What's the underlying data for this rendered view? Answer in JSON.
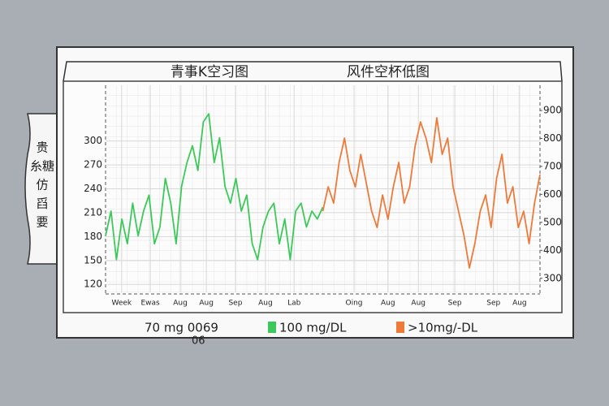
{
  "chart_data": {
    "type": "line",
    "titles": [
      "青事K空习图",
      "风件空杯低图"
    ],
    "side_label": [
      "贵",
      "糸糖",
      "仿",
      "舀",
      "要"
    ],
    "legend_note": [
      "70 mg 0069",
      "06"
    ],
    "xlim": [
      0,
      100
    ],
    "xticks": [
      {
        "value": 3.7,
        "label": "Week"
      },
      {
        "value": 10.3,
        "label": "Ewas"
      },
      {
        "value": 17.2,
        "label": "Aug"
      },
      {
        "value": 23.2,
        "label": "Aug"
      },
      {
        "value": 29.9,
        "label": "Sep"
      },
      {
        "value": 36.8,
        "label": "Aug"
      },
      {
        "value": 43.4,
        "label": "Lab"
      },
      {
        "value": 57.2,
        "label": "Oing"
      },
      {
        "value": 65,
        "label": "Aug"
      },
      {
        "value": 72,
        "label": "Aug"
      },
      {
        "value": 80.4,
        "label": "Sep"
      },
      {
        "value": 89.3,
        "label": "Sep"
      },
      {
        "value": 95.3,
        "label": "Aug"
      }
    ],
    "ylim": [
      110,
      370
    ],
    "yticks": [
      300,
      270,
      240,
      210,
      180,
      150,
      120
    ],
    "y2lim": [
      250,
      990
    ],
    "y2ticks": [
      900,
      800,
      700,
      600,
      500,
      400,
      300
    ],
    "grid": true,
    "series": [
      {
        "name": "100 mg/DL",
        "color": "#3cc95a",
        "x": [
          0,
          1.25,
          2.5,
          3.75,
          5,
          6.25,
          7.5,
          8.75,
          10,
          11.25,
          12.5,
          13.75,
          15,
          16.25,
          17.5,
          18.75,
          20,
          21.25,
          22.5,
          23.75,
          25,
          26.25,
          27.5,
          28.75,
          30,
          31.25,
          32.5,
          33.75,
          35,
          36.25,
          37.5,
          38.75,
          40,
          41.25,
          42.5,
          43.75,
          45,
          46.25,
          47.5,
          48.75,
          50
        ],
        "values": [
          181,
          212,
          151,
          202,
          171,
          222,
          181,
          212,
          232,
          171,
          192,
          253,
          222,
          171,
          243,
          273,
          294,
          263,
          324,
          334,
          273,
          304,
          243,
          222,
          253,
          212,
          232,
          171,
          151,
          192,
          212,
          222,
          171,
          202,
          151,
          212,
          222,
          192,
          212,
          202,
          217
        ]
      },
      {
        "name": ">10mg/-DL",
        "color": "#ee7a3a",
        "axis": "y2",
        "x": [
          50,
          51.25,
          52.5,
          53.75,
          55,
          56.25,
          57.5,
          58.75,
          60,
          61.25,
          62.5,
          63.75,
          65,
          66.25,
          67.5,
          68.75,
          70,
          71.25,
          72.5,
          73.75,
          75,
          76.25,
          77.5,
          78.75,
          80,
          81.25,
          82.5,
          83.75,
          85,
          86.25,
          87.5,
          88.75,
          90,
          91.25,
          92.5,
          93.75,
          95,
          96.25,
          97.5,
          98.75,
          100
        ],
        "values": [
          540,
          627,
          569,
          714,
          801,
          685,
          627,
          743,
          642,
          540,
          482,
          598,
          511,
          627,
          714,
          569,
          627,
          772,
          859,
          801,
          714,
          874,
          743,
          801,
          627,
          540,
          453,
          337,
          424,
          540,
          598,
          482,
          656,
          743,
          569,
          627,
          482,
          540,
          424,
          569,
          671
        ]
      }
    ]
  }
}
